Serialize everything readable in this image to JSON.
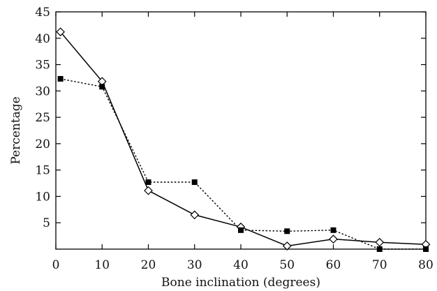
{
  "chart_data": {
    "type": "line",
    "title": "",
    "xlabel": "Bone inclination (degrees)",
    "ylabel": "Percentage",
    "xlim": [
      0,
      80
    ],
    "ylim": [
      0,
      45
    ],
    "xticks": [
      0,
      10,
      20,
      30,
      40,
      50,
      60,
      70,
      80
    ],
    "yticks": [
      5,
      10,
      15,
      20,
      25,
      30,
      35,
      40,
      45
    ],
    "grid": false,
    "legend": "none",
    "series": [
      {
        "marker": "open-diamond",
        "line": "solid",
        "color": "#000000",
        "x": [
          1,
          10,
          20,
          30,
          40,
          50,
          60,
          70,
          80
        ],
        "y": [
          41.2,
          31.8,
          11.1,
          6.5,
          4.2,
          0.6,
          1.9,
          1.3,
          0.9
        ]
      },
      {
        "marker": "filled-square",
        "line": "dotted",
        "color": "#000000",
        "x": [
          1,
          10,
          20,
          30,
          40,
          50,
          60,
          70,
          80
        ],
        "y": [
          32.3,
          30.8,
          12.7,
          12.7,
          3.6,
          3.4,
          3.6,
          0,
          0
        ]
      }
    ]
  }
}
